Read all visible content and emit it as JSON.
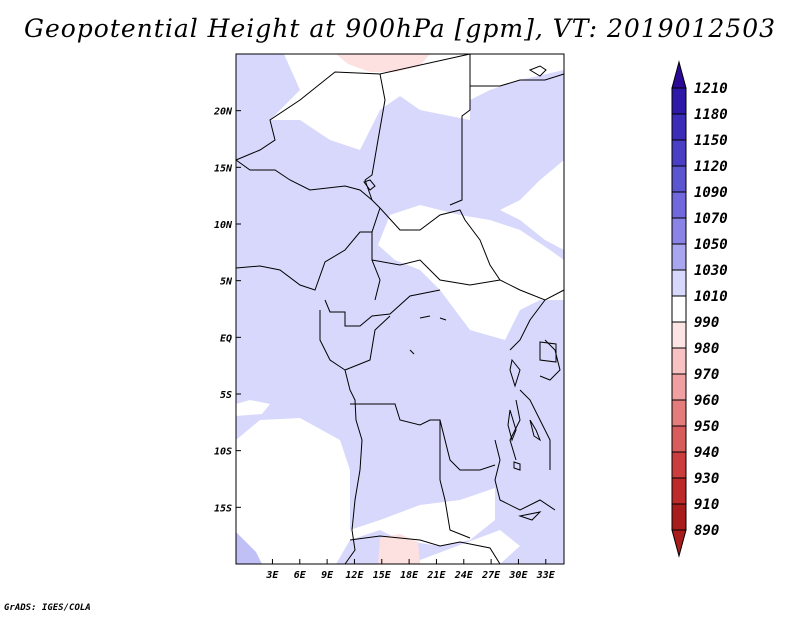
{
  "title": "Geopotential Height at 900hPa [gpm], VT: 2019012503",
  "credit": "GrADS: IGES/COLA",
  "map": {
    "lon_range": [
      -1,
      35
    ],
    "lat_range": [
      -20,
      25
    ],
    "lon_ticks": [
      {
        "value": 3,
        "label": "3E"
      },
      {
        "value": 6,
        "label": "6E"
      },
      {
        "value": 9,
        "label": "9E"
      },
      {
        "value": 12,
        "label": "12E"
      },
      {
        "value": 15,
        "label": "15E"
      },
      {
        "value": 18,
        "label": "18E"
      },
      {
        "value": 21,
        "label": "21E"
      },
      {
        "value": 24,
        "label": "24E"
      },
      {
        "value": 27,
        "label": "27E"
      },
      {
        "value": 30,
        "label": "30E"
      },
      {
        "value": 33,
        "label": "33E"
      }
    ],
    "lat_ticks": [
      {
        "value": 20,
        "label": "20N"
      },
      {
        "value": 15,
        "label": "15N"
      },
      {
        "value": 10,
        "label": "10N"
      },
      {
        "value": 5,
        "label": "5N"
      },
      {
        "value": 0,
        "label": "EQ"
      },
      {
        "value": -5,
        "label": "5S"
      },
      {
        "value": -10,
        "label": "10S"
      },
      {
        "value": -15,
        "label": "15S"
      }
    ]
  },
  "colorbar": {
    "levels": [
      "1210",
      "1180",
      "1150",
      "1120",
      "1090",
      "1070",
      "1050",
      "1030",
      "1010",
      "990",
      "980",
      "970",
      "960",
      "950",
      "940",
      "930",
      "910",
      "890"
    ],
    "colors": [
      "#2a0a96",
      "#2e18a8",
      "#3b2db8",
      "#4a3fc4",
      "#5c55d0",
      "#7068dc",
      "#8a84e6",
      "#a9a6ef",
      "#d8d8fc",
      "#ffffff",
      "#fde4e4",
      "#f9c2c2",
      "#f0a0a0",
      "#e47c7c",
      "#d85c5c",
      "#cc3e3e",
      "#be2a2a",
      "#a81c1c"
    ],
    "colors_top_bottom": [
      "#2a0a96",
      "#a81c1c"
    ]
  },
  "fill_colors": {
    "above_1010": "#d8d8fc",
    "above_1030": "#c0bff6",
    "below_1010": "#ffffff",
    "below_990": "#fde0e0"
  }
}
